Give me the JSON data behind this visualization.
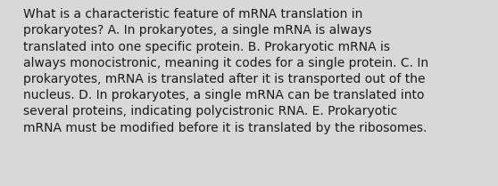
{
  "lines": [
    "What is a characteristic feature of mRNA translation in",
    "prokaryotes? A. In prokaryotes, a single mRNA is always",
    "translated into one specific protein. B. Prokaryotic mRNA is",
    "always monocistronic, meaning it codes for a single protein. C. In",
    "prokaryotes, mRNA is translated after it is transported out of the",
    "nucleus. D. In prokaryotes, a single mRNA can be translated into",
    "several proteins, indicating polycistronic RNA. E. Prokaryotic",
    "mRNA must be modified before it is translated by the ribosomes."
  ],
  "background_color": "#d8d8d8",
  "text_color": "#1a1a1a",
  "font_size": 10.0,
  "font_family": "DejaVu Sans",
  "fig_width": 5.58,
  "fig_height": 2.09,
  "dpi": 100
}
